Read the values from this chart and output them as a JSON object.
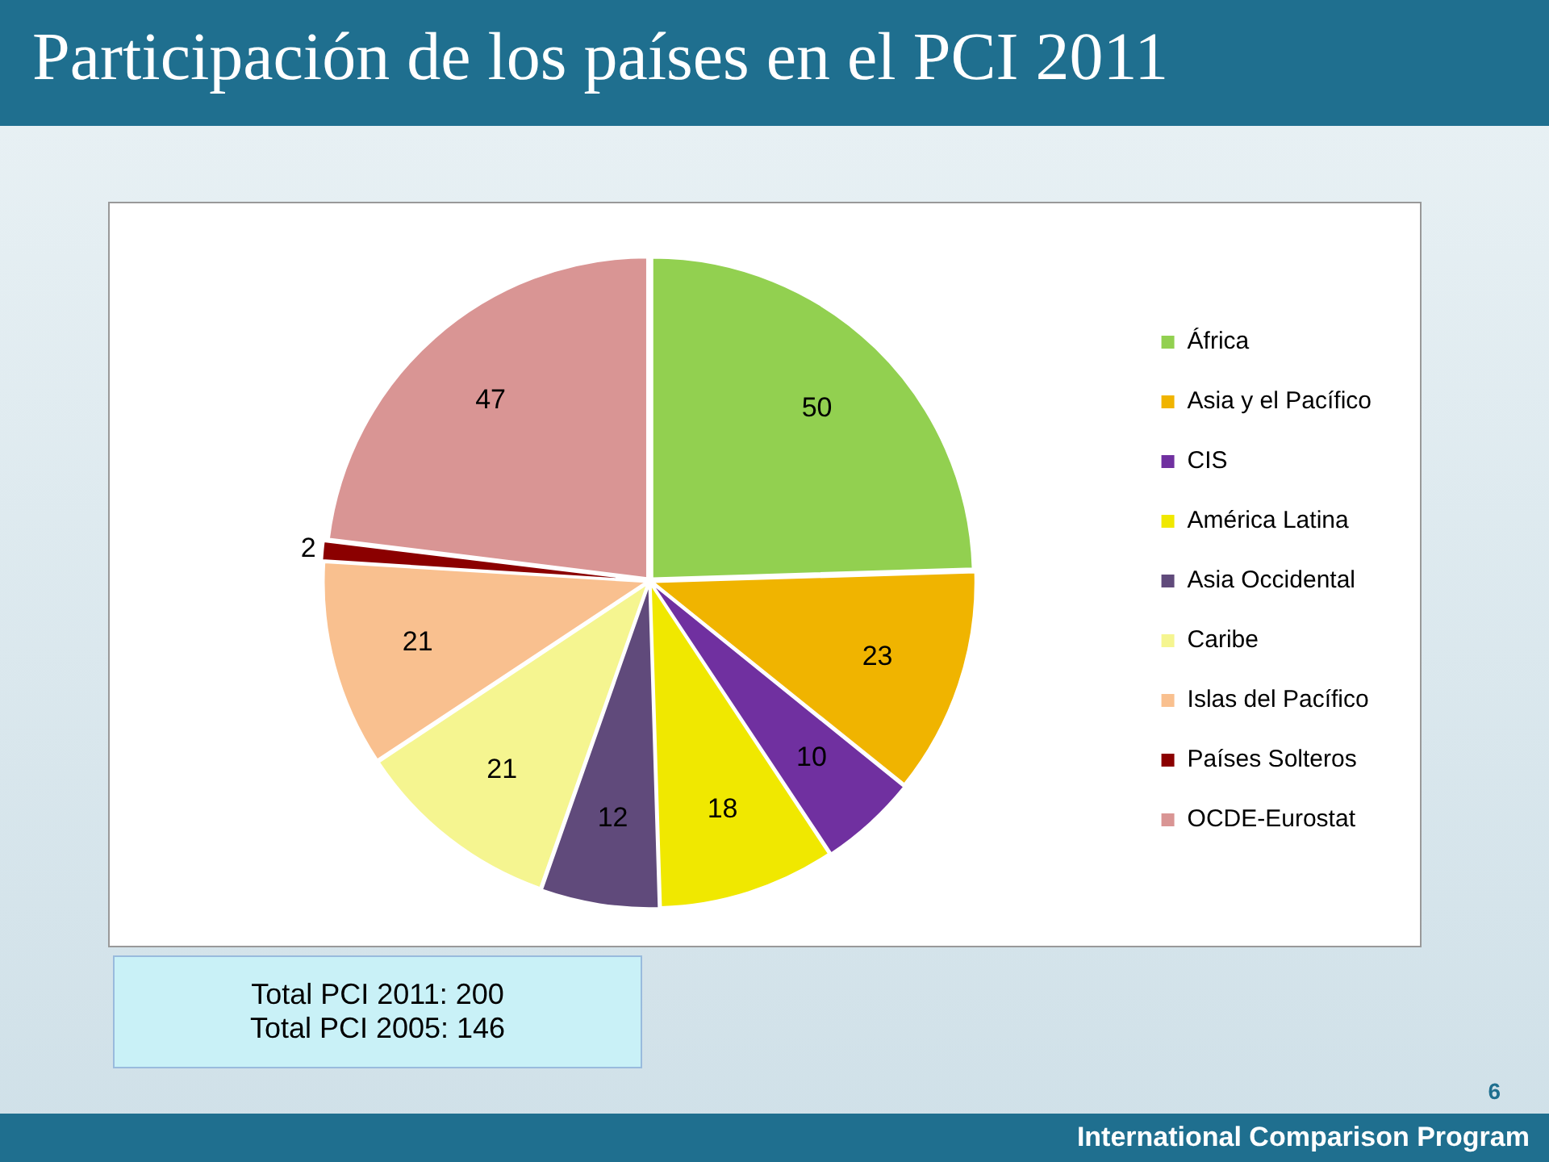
{
  "chart_data": {
    "type": "pie",
    "title": "Participación de los países en el PCI 2011",
    "categories": [
      "África",
      "Asia y el Pacífico",
      "CIS",
      "América Latina",
      "Asia Occidental",
      "Caribe",
      "Islas del Pacífico",
      "Países Solteros",
      "OCDE-Eurostat"
    ],
    "values": [
      50,
      23,
      10,
      18,
      12,
      21,
      21,
      2,
      47
    ],
    "colors": [
      "#92d050",
      "#f0b400",
      "#7030a0",
      "#f0e800",
      "#604a7b",
      "#f5f590",
      "#f9c08f",
      "#8b0000",
      "#d99594"
    ],
    "data_labels": true,
    "legend": "right",
    "annotations": [
      "Total PCI 2011: 200",
      "Total PCI 2005: 146",
      "International Comparison Program",
      "6"
    ]
  }
}
